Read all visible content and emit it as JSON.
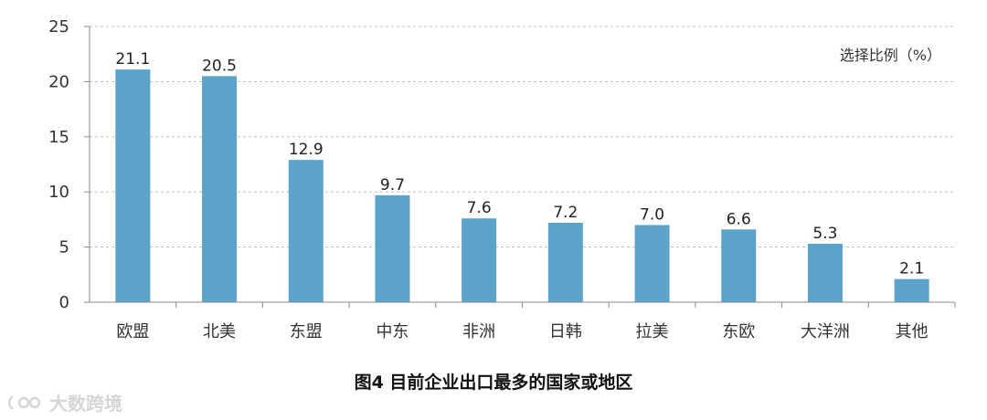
{
  "chart_data": {
    "type": "bar",
    "categories": [
      "欧盟",
      "北美",
      "东盟",
      "中东",
      "非洲",
      "日韩",
      "拉美",
      "东欧",
      "大洋洲",
      "其他"
    ],
    "values": [
      21.1,
      20.5,
      12.9,
      9.7,
      7.6,
      7.2,
      7.0,
      6.6,
      5.3,
      2.1
    ],
    "value_labels": [
      "21.1",
      "20.5",
      "12.9",
      "9.7",
      "7.6",
      "7.2",
      "7.0",
      "6.6",
      "5.3",
      "2.1"
    ],
    "yticks": [
      "0",
      "5",
      "10",
      "15",
      "20",
      "25"
    ],
    "ylim": [
      0,
      25
    ],
    "unit_label": "选择比例（%）",
    "grid": true,
    "bar_color": "#5ba3c9",
    "grid_color": "#bfbfbf"
  },
  "caption": "图4  目前企业出口最多的国家或地区",
  "watermark": {
    "icon": "logo-icon",
    "text": "大数跨境"
  }
}
